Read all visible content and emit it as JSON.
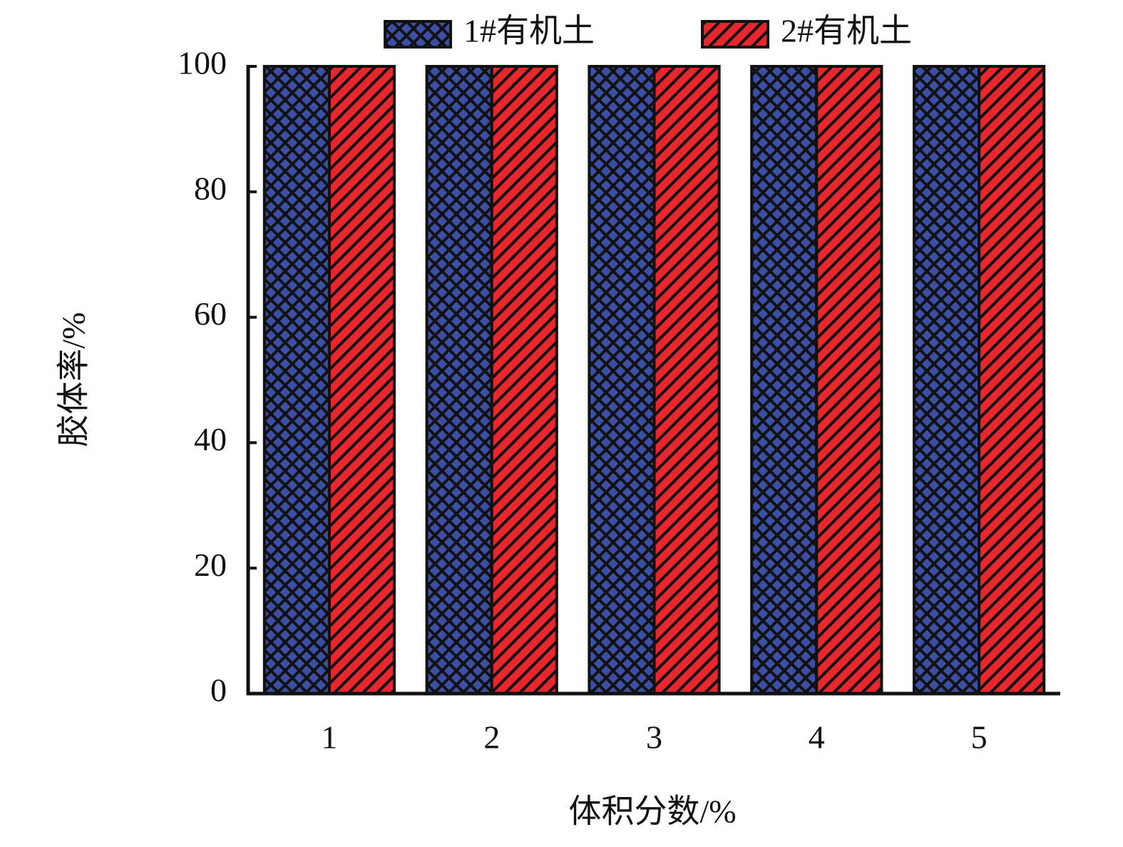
{
  "chart_data": {
    "type": "bar",
    "x_label": "体积分数/%",
    "y_label": "胶体率/%",
    "categories": [
      "1",
      "2",
      "3",
      "4",
      "5"
    ],
    "series": [
      {
        "name": "1#有机土",
        "color": "#3b4fa8",
        "pattern": "cross",
        "values": [
          100,
          100,
          100,
          100,
          100
        ]
      },
      {
        "name": "2#有机土",
        "color": "#e8262e",
        "pattern": "diagonal",
        "values": [
          100,
          100,
          100,
          100,
          100
        ]
      }
    ],
    "ylim": [
      0,
      100
    ],
    "yticks": [
      0,
      20,
      40,
      60,
      80,
      100
    ],
    "legend": "top"
  }
}
